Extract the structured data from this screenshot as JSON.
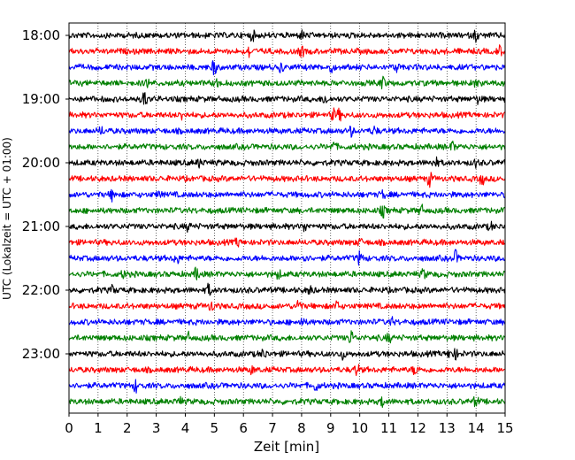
{
  "chart_data": {
    "type": "line",
    "title": "",
    "xlabel": "Zeit  [min]",
    "ylabel": "UTC (Lokalzeit = UTC + 01:00)",
    "xlim": [
      0,
      15
    ],
    "x_ticks": [
      0,
      1,
      2,
      3,
      4,
      5,
      6,
      7,
      8,
      9,
      10,
      11,
      12,
      13,
      14,
      15
    ],
    "x_tick_labels": [
      "0",
      "1",
      "2",
      "3",
      "4",
      "5",
      "6",
      "7",
      "8",
      "9",
      "10",
      "11",
      "12",
      "13",
      "14",
      "15"
    ],
    "y_tick_labels": [
      "18:00",
      "19:00",
      "20:00",
      "21:00",
      "22:00",
      "23:00"
    ],
    "y_tick_rows": [
      0,
      4,
      8,
      12,
      16,
      20
    ],
    "row_interval_min": 15,
    "x_grid": true,
    "color_cycle": [
      "#000000",
      "#ff0000",
      "#0000ff",
      "#008000"
    ],
    "rows": [
      {
        "start": "18:00",
        "color": "#000000",
        "events": [
          {
            "t": 6.3,
            "a": 0.9
          },
          {
            "t": 8.0,
            "a": 0.7
          },
          {
            "t": 14.0,
            "a": 1.0
          }
        ]
      },
      {
        "start": "18:15",
        "color": "#ff0000",
        "events": [
          {
            "t": 6.2,
            "a": 1.1
          },
          {
            "t": 8.0,
            "a": 1.0
          },
          {
            "t": 14.8,
            "a": 0.9
          }
        ]
      },
      {
        "start": "18:30",
        "color": "#0000ff",
        "events": [
          {
            "t": 5.0,
            "a": 1.4
          },
          {
            "t": 7.3,
            "a": 0.8
          },
          {
            "t": 9.0,
            "a": 0.9
          },
          {
            "t": 11.3,
            "a": 0.8
          }
        ]
      },
      {
        "start": "18:45",
        "color": "#008000",
        "events": [
          {
            "t": 2.7,
            "a": 0.8
          },
          {
            "t": 5.1,
            "a": 0.7
          },
          {
            "t": 10.8,
            "a": 1.1
          },
          {
            "t": 14.0,
            "a": 0.6
          }
        ]
      },
      {
        "start": "19:00",
        "color": "#000000",
        "events": [
          {
            "t": 2.6,
            "a": 1.6
          },
          {
            "t": 8.8,
            "a": 1.0
          },
          {
            "t": 14.1,
            "a": 0.8
          }
        ]
      },
      {
        "start": "19:15",
        "color": "#ff0000",
        "events": [
          {
            "t": 3.9,
            "a": 0.8
          },
          {
            "t": 9.1,
            "a": 1.0
          },
          {
            "t": 9.3,
            "a": 0.9
          }
        ]
      },
      {
        "start": "19:30",
        "color": "#0000ff",
        "events": [
          {
            "t": 1.1,
            "a": 0.7
          },
          {
            "t": 9.7,
            "a": 0.8
          },
          {
            "t": 10.5,
            "a": 0.8
          }
        ]
      },
      {
        "start": "19:45",
        "color": "#008000",
        "events": [
          {
            "t": 9.1,
            "a": 0.9
          },
          {
            "t": 13.2,
            "a": 0.8
          }
        ]
      },
      {
        "start": "20:00",
        "color": "#000000",
        "events": [
          {
            "t": 4.5,
            "a": 0.8
          },
          {
            "t": 12.6,
            "a": 1.1
          },
          {
            "t": 14.0,
            "a": 0.6
          }
        ]
      },
      {
        "start": "20:15",
        "color": "#ff0000",
        "events": [
          {
            "t": 12.4,
            "a": 1.3
          },
          {
            "t": 14.2,
            "a": 1.0
          }
        ]
      },
      {
        "start": "20:30",
        "color": "#0000ff",
        "events": [
          {
            "t": 1.5,
            "a": 1.1
          },
          {
            "t": 3.1,
            "a": 0.6
          },
          {
            "t": 10.8,
            "a": 0.7
          }
        ]
      },
      {
        "start": "20:45",
        "color": "#008000",
        "events": [
          {
            "t": 10.8,
            "a": 1.1
          },
          {
            "t": 12.1,
            "a": 1.0
          }
        ]
      },
      {
        "start": "21:00",
        "color": "#000000",
        "events": [
          {
            "t": 4.1,
            "a": 0.7
          },
          {
            "t": 8.1,
            "a": 0.8
          },
          {
            "t": 14.5,
            "a": 0.6
          }
        ]
      },
      {
        "start": "21:15",
        "color": "#ff0000",
        "events": [
          {
            "t": 5.8,
            "a": 0.7
          },
          {
            "t": 10.0,
            "a": 0.6
          }
        ]
      },
      {
        "start": "21:30",
        "color": "#0000ff",
        "events": [
          {
            "t": 3.7,
            "a": 1.1
          },
          {
            "t": 8.1,
            "a": 0.8
          },
          {
            "t": 10.0,
            "a": 1.2
          },
          {
            "t": 13.3,
            "a": 1.3
          }
        ]
      },
      {
        "start": "21:45",
        "color": "#008000",
        "events": [
          {
            "t": 1.9,
            "a": 0.7
          },
          {
            "t": 4.4,
            "a": 1.3
          },
          {
            "t": 7.2,
            "a": 0.8
          },
          {
            "t": 12.2,
            "a": 0.9
          }
        ]
      },
      {
        "start": "22:00",
        "color": "#000000",
        "events": [
          {
            "t": 1.5,
            "a": 0.7
          },
          {
            "t": 4.8,
            "a": 1.0
          },
          {
            "t": 8.3,
            "a": 0.8
          }
        ]
      },
      {
        "start": "22:15",
        "color": "#ff0000",
        "events": [
          {
            "t": 4.9,
            "a": 0.9
          },
          {
            "t": 7.9,
            "a": 1.4
          },
          {
            "t": 9.2,
            "a": 0.8
          }
        ]
      },
      {
        "start": "22:30",
        "color": "#0000ff",
        "events": [
          {
            "t": 8.0,
            "a": 0.6
          },
          {
            "t": 11.1,
            "a": 0.6
          }
        ]
      },
      {
        "start": "22:45",
        "color": "#008000",
        "events": [
          {
            "t": 4.1,
            "a": 0.8
          },
          {
            "t": 9.7,
            "a": 1.3
          },
          {
            "t": 11.0,
            "a": 0.8
          }
        ]
      },
      {
        "start": "23:00",
        "color": "#000000",
        "events": [
          {
            "t": 6.7,
            "a": 0.9
          },
          {
            "t": 9.4,
            "a": 0.9
          },
          {
            "t": 13.1,
            "a": 0.8
          },
          {
            "t": 13.3,
            "a": 0.8
          }
        ]
      },
      {
        "start": "23:15",
        "color": "#ff0000",
        "events": [
          {
            "t": 6.3,
            "a": 0.6
          },
          {
            "t": 9.9,
            "a": 1.1
          },
          {
            "t": 11.9,
            "a": 0.9
          }
        ]
      },
      {
        "start": "23:30",
        "color": "#0000ff",
        "events": [
          {
            "t": 2.3,
            "a": 1.1
          },
          {
            "t": 8.5,
            "a": 1.0
          }
        ]
      },
      {
        "start": "23:45",
        "color": "#008000",
        "events": [
          {
            "t": 3.8,
            "a": 0.7
          },
          {
            "t": 10.8,
            "a": 0.9
          },
          {
            "t": 14.0,
            "a": 0.9
          }
        ]
      }
    ]
  }
}
